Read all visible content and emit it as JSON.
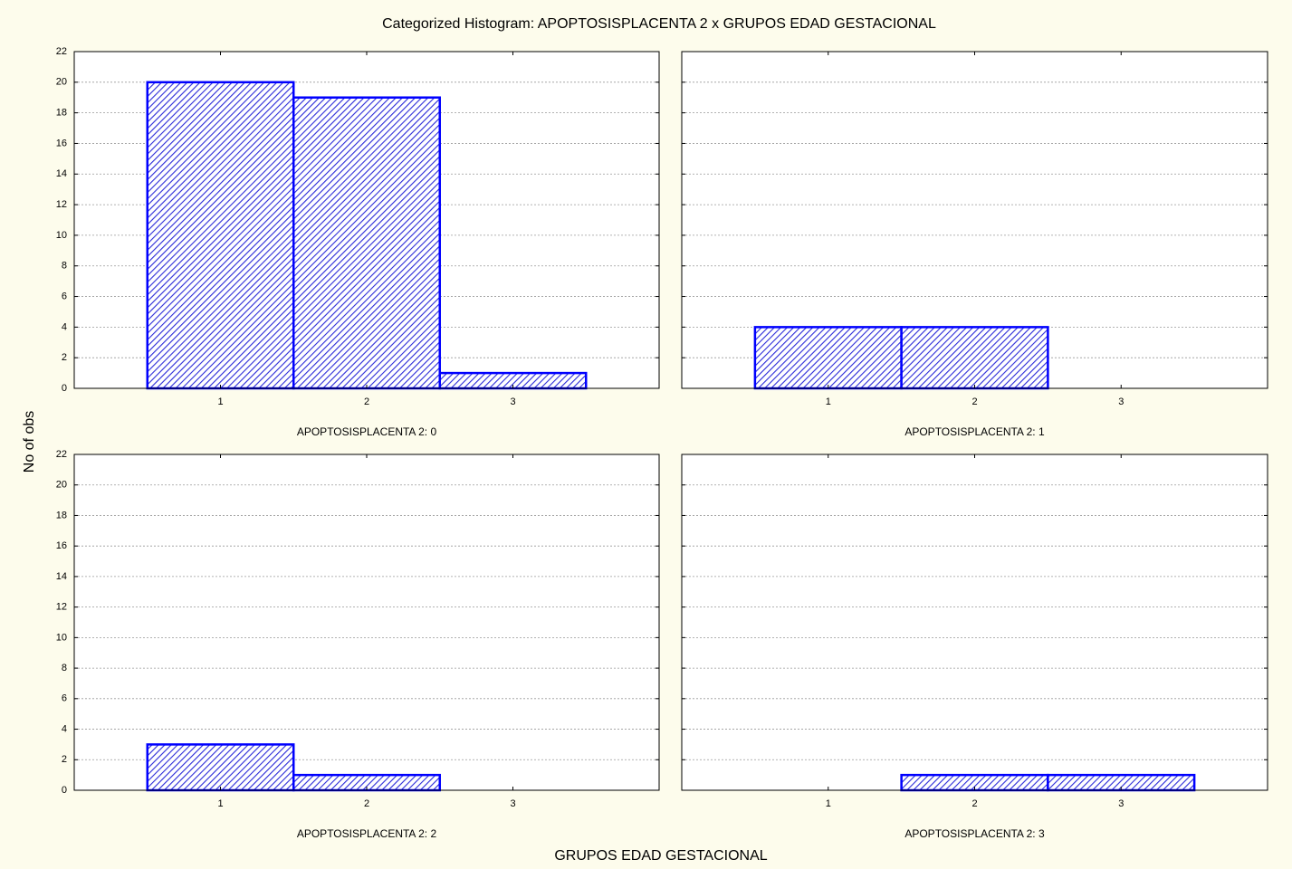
{
  "title": "Categorized Histogram: APOPTOSISPLACENTA 2 x GRUPOS EDAD GESTACIONAL",
  "x_label": "GRUPOS EDAD GESTACIONAL",
  "y_label": "No of obs",
  "chart_data": [
    {
      "type": "bar",
      "title": "APOPTOSISPLACENTA 2: 0",
      "categories": [
        "1",
        "2",
        "3"
      ],
      "values": [
        20,
        19,
        1
      ],
      "color": "#0000ff",
      "ylim": [
        0,
        22
      ],
      "yticks": [
        0,
        2,
        4,
        6,
        8,
        10,
        12,
        14,
        16,
        18,
        20,
        22
      ],
      "grid": true
    },
    {
      "type": "bar",
      "title": "APOPTOSISPLACENTA 2: 1",
      "categories": [
        "1",
        "2",
        "3"
      ],
      "values": [
        4,
        4,
        0
      ],
      "color": "#0000ff",
      "ylim": [
        0,
        22
      ],
      "yticks": [
        0,
        2,
        4,
        6,
        8,
        10,
        12,
        14,
        16,
        18,
        20,
        22
      ],
      "grid": true
    },
    {
      "type": "bar",
      "title": "APOPTOSISPLACENTA 2: 2",
      "categories": [
        "1",
        "2",
        "3"
      ],
      "values": [
        3,
        1,
        0
      ],
      "color": "#0000ff",
      "ylim": [
        0,
        22
      ],
      "yticks": [
        0,
        2,
        4,
        6,
        8,
        10,
        12,
        14,
        16,
        18,
        20,
        22
      ],
      "grid": true
    },
    {
      "type": "bar",
      "title": "APOPTOSISPLACENTA 2: 3",
      "categories": [
        "1",
        "2",
        "3"
      ],
      "values": [
        0,
        1,
        1
      ],
      "color": "#0000ff",
      "ylim": [
        0,
        22
      ],
      "yticks": [
        0,
        2,
        4,
        6,
        8,
        10,
        12,
        14,
        16,
        18,
        20,
        22
      ],
      "grid": true
    }
  ]
}
